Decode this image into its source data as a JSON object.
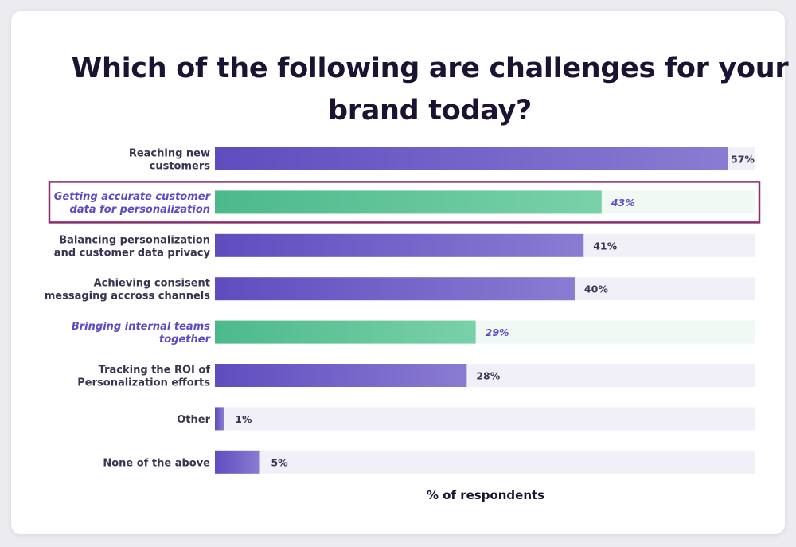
{
  "chart_data": {
    "type": "bar",
    "orientation": "horizontal",
    "title_lines": [
      "Which of the following are challenges for your",
      "brand today?"
    ],
    "xlabel": "% of respondents",
    "ylabel": "",
    "xlim": [
      0,
      57
    ],
    "grid": false,
    "legend": "none",
    "categories": [
      [
        "Reaching new",
        "customers"
      ],
      [
        "Getting accurate customer",
        "data for personalization"
      ],
      [
        "Balancing personalization",
        "and customer data privacy"
      ],
      [
        "Achieving consisent",
        "messaging accross channels"
      ],
      [
        "Bringing internal teams",
        "together"
      ],
      [
        "Tracking the ROI of",
        "Personalization efforts"
      ],
      [
        "Other"
      ],
      [
        "None of the above"
      ]
    ],
    "values": [
      57,
      43,
      41,
      40,
      29,
      28,
      1,
      5
    ],
    "value_labels": [
      "57%",
      "43%",
      "41%",
      "40%",
      "29%",
      "28%",
      "1%",
      "5%"
    ],
    "highlighted": [
      false,
      true,
      false,
      false,
      true,
      false,
      false,
      false
    ],
    "boxed": [
      false,
      true,
      false,
      false,
      false,
      false,
      false,
      false
    ]
  },
  "colors": {
    "bar_purple_start": "#5f4dbf",
    "bar_purple_end": "#8a7bd2",
    "bar_green_start": "#4cb98c",
    "bar_green_end": "#79d1a9",
    "track_purple": "#f1f0f8",
    "track_green": "#f1f9f5",
    "label_dark": "#3b3350",
    "label_highlight": "#5b4bc4",
    "box_border": "#8b2d6a",
    "title": "#1c1232"
  }
}
